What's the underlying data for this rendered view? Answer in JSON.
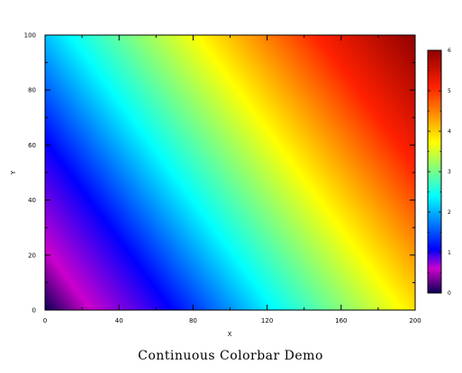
{
  "chart_data": {
    "type": "heatmap",
    "title": "Continuous Colorbar Demo",
    "xlabel": "X",
    "ylabel": "Y",
    "xlim": [
      0,
      200
    ],
    "ylim": [
      0,
      100
    ],
    "x_ticks": [
      0,
      40,
      80,
      120,
      160,
      200
    ],
    "y_ticks": [
      0,
      20,
      40,
      60,
      80,
      100
    ],
    "x_tick_labels": [
      "0",
      "40",
      "80",
      "120",
      "160",
      "200"
    ],
    "y_tick_labels": [
      "0",
      "20",
      "40",
      "60",
      "80",
      "100"
    ],
    "field": {
      "description_formula": "z = 6*(x/200 + y/100)/2 approximately; min 0 at (0,0), max 6 at (200,100)",
      "z_at_corners": {
        "x0_y0": 0,
        "x200_y0": 3,
        "x0_y100": 3,
        "x200_y100": 6
      }
    },
    "colorbar": {
      "min": 0,
      "max": 6,
      "ticks": [
        0,
        1,
        2,
        3,
        4,
        5,
        6
      ],
      "tick_labels": [
        "0",
        "1",
        "2",
        "3",
        "4",
        "5",
        "6"
      ],
      "colormap": [
        "#000080",
        "#cc00cc",
        "#0000ff",
        "#00ffff",
        "#ffff00",
        "#ff0000",
        "#800000"
      ]
    }
  }
}
